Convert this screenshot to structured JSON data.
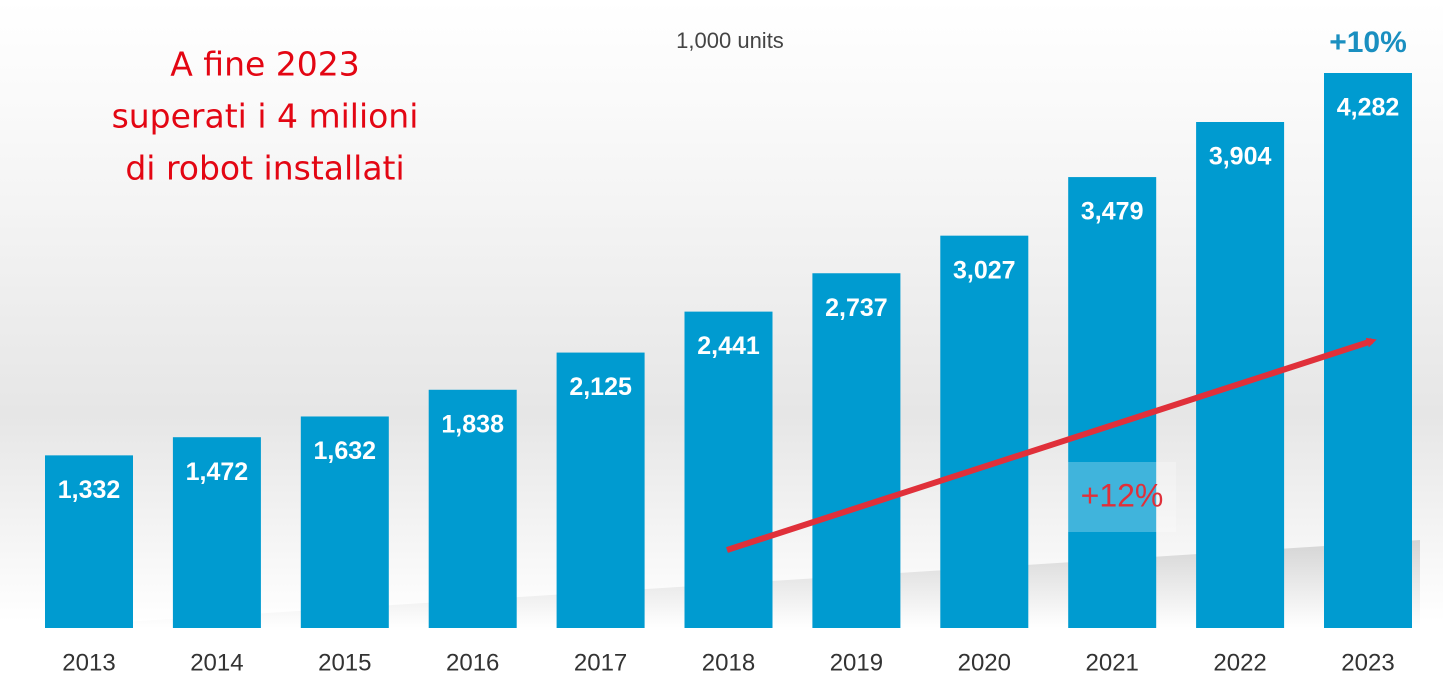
{
  "chart_data": {
    "type": "bar",
    "subtitle": "1,000 units",
    "callout": [
      "A fine 2023",
      "superati i 4 milioni",
      "di robot installati"
    ],
    "change_label": "+10%",
    "cagr_label": "+12%",
    "categories": [
      "2013",
      "2014",
      "2015",
      "2016",
      "2017",
      "2018",
      "2019",
      "2020",
      "2021",
      "2022",
      "2023"
    ],
    "values": [
      1332,
      1472,
      1632,
      1838,
      2125,
      2441,
      2737,
      3027,
      3479,
      3904,
      4282
    ],
    "value_labels": [
      "1,332",
      "1,472",
      "1,632",
      "1,838",
      "2,125",
      "2,441",
      "2,737",
      "3,027",
      "3,479",
      "3,904",
      "4,282"
    ],
    "color": "#009bd0"
  }
}
